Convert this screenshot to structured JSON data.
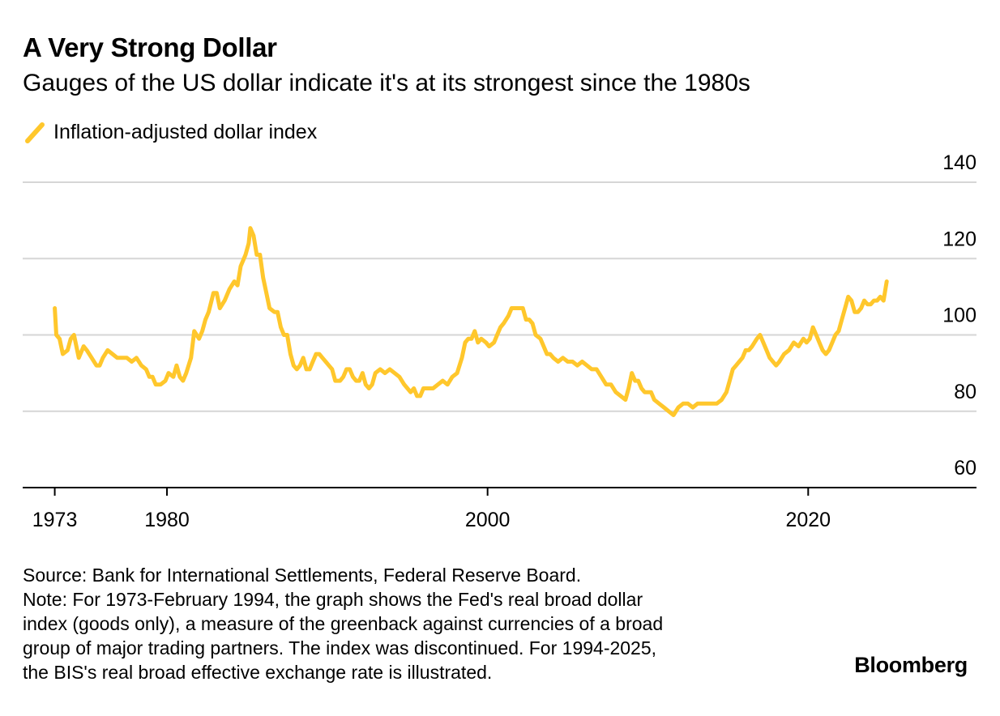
{
  "header": {
    "title": "A Very Strong Dollar",
    "subtitle": "Gauges of the US dollar indicate it's at its strongest since the 1980s"
  },
  "chart_data": {
    "type": "line",
    "title": "A Very Strong Dollar",
    "subtitle": "Gauges of the US dollar indicate it's at its strongest since the 1980s",
    "xlabel": "",
    "ylabel": "",
    "ylim": [
      60,
      140
    ],
    "yticks": [
      140,
      120,
      100,
      80,
      60
    ],
    "xlim": [
      1971,
      2030.5
    ],
    "xticks": [
      1973,
      1980,
      2000,
      2020
    ],
    "y_axis_position": "right",
    "grid": "horizontal",
    "legend_position": "top-left",
    "color": "#FFC72C",
    "series": [
      {
        "name": "Inflation-adjusted dollar index",
        "points": [
          [
            1973.0,
            107
          ],
          [
            1973.1,
            100
          ],
          [
            1973.3,
            99
          ],
          [
            1973.5,
            95
          ],
          [
            1973.8,
            96
          ],
          [
            1974.0,
            99
          ],
          [
            1974.2,
            100
          ],
          [
            1974.5,
            94
          ],
          [
            1974.8,
            97
          ],
          [
            1975.0,
            96
          ],
          [
            1975.3,
            94
          ],
          [
            1975.6,
            92
          ],
          [
            1975.8,
            92
          ],
          [
            1976.0,
            94
          ],
          [
            1976.3,
            96
          ],
          [
            1976.6,
            95
          ],
          [
            1976.9,
            94
          ],
          [
            1977.2,
            94
          ],
          [
            1977.5,
            94
          ],
          [
            1977.8,
            93
          ],
          [
            1978.1,
            94
          ],
          [
            1978.4,
            92
          ],
          [
            1978.7,
            91
          ],
          [
            1978.9,
            89
          ],
          [
            1979.1,
            89
          ],
          [
            1979.3,
            87
          ],
          [
            1979.6,
            87
          ],
          [
            1979.9,
            88
          ],
          [
            1980.1,
            90
          ],
          [
            1980.4,
            89
          ],
          [
            1980.6,
            92
          ],
          [
            1980.8,
            89
          ],
          [
            1981.0,
            88
          ],
          [
            1981.2,
            90
          ],
          [
            1981.5,
            94
          ],
          [
            1981.7,
            101
          ],
          [
            1982.0,
            99
          ],
          [
            1982.2,
            101
          ],
          [
            1982.4,
            104
          ],
          [
            1982.6,
            106
          ],
          [
            1982.9,
            111
          ],
          [
            1983.1,
            111
          ],
          [
            1983.3,
            107
          ],
          [
            1983.6,
            109
          ],
          [
            1983.9,
            112
          ],
          [
            1984.2,
            114
          ],
          [
            1984.4,
            113
          ],
          [
            1984.6,
            118
          ],
          [
            1984.9,
            121
          ],
          [
            1985.1,
            124
          ],
          [
            1985.2,
            128
          ],
          [
            1985.4,
            126
          ],
          [
            1985.6,
            121
          ],
          [
            1985.8,
            121
          ],
          [
            1986.0,
            115
          ],
          [
            1986.2,
            111
          ],
          [
            1986.4,
            107
          ],
          [
            1986.7,
            106
          ],
          [
            1986.9,
            106
          ],
          [
            1987.1,
            102
          ],
          [
            1987.3,
            100
          ],
          [
            1987.5,
            100
          ],
          [
            1987.7,
            95
          ],
          [
            1987.9,
            92
          ],
          [
            1988.1,
            91
          ],
          [
            1988.3,
            92
          ],
          [
            1988.5,
            94
          ],
          [
            1988.7,
            91
          ],
          [
            1988.9,
            91
          ],
          [
            1989.1,
            93
          ],
          [
            1989.3,
            95
          ],
          [
            1989.5,
            95
          ],
          [
            1989.7,
            94
          ],
          [
            1989.9,
            93
          ],
          [
            1990.1,
            92
          ],
          [
            1990.3,
            91
          ],
          [
            1990.5,
            88
          ],
          [
            1990.8,
            88
          ],
          [
            1991.0,
            89
          ],
          [
            1991.2,
            91
          ],
          [
            1991.4,
            91
          ],
          [
            1991.6,
            89
          ],
          [
            1991.8,
            88
          ],
          [
            1992.0,
            88
          ],
          [
            1992.2,
            90
          ],
          [
            1992.4,
            87
          ],
          [
            1992.6,
            86
          ],
          [
            1992.8,
            87
          ],
          [
            1993.0,
            90
          ],
          [
            1993.3,
            91
          ],
          [
            1993.6,
            90
          ],
          [
            1993.9,
            91
          ],
          [
            1994.2,
            90
          ],
          [
            1994.5,
            89
          ],
          [
            1994.8,
            87
          ],
          [
            1995.0,
            86
          ],
          [
            1995.2,
            85
          ],
          [
            1995.4,
            86
          ],
          [
            1995.6,
            84
          ],
          [
            1995.8,
            84
          ],
          [
            1996.0,
            86
          ],
          [
            1996.3,
            86
          ],
          [
            1996.6,
            86
          ],
          [
            1996.9,
            87
          ],
          [
            1997.2,
            88
          ],
          [
            1997.5,
            87
          ],
          [
            1997.8,
            89
          ],
          [
            1998.1,
            90
          ],
          [
            1998.4,
            94
          ],
          [
            1998.6,
            98
          ],
          [
            1998.8,
            99
          ],
          [
            1999.0,
            99
          ],
          [
            1999.2,
            101
          ],
          [
            1999.4,
            98
          ],
          [
            1999.6,
            99
          ],
          [
            1999.9,
            98
          ],
          [
            2000.1,
            97
          ],
          [
            2000.4,
            98
          ],
          [
            2000.6,
            100
          ],
          [
            2000.8,
            102
          ],
          [
            2001.0,
            103
          ],
          [
            2001.3,
            105
          ],
          [
            2001.5,
            107
          ],
          [
            2001.8,
            107
          ],
          [
            2002.0,
            107
          ],
          [
            2002.2,
            107
          ],
          [
            2002.4,
            104
          ],
          [
            2002.6,
            104
          ],
          [
            2002.8,
            103
          ],
          [
            2003.0,
            100
          ],
          [
            2003.3,
            99
          ],
          [
            2003.5,
            97
          ],
          [
            2003.7,
            95
          ],
          [
            2003.9,
            95
          ],
          [
            2004.1,
            94
          ],
          [
            2004.4,
            93
          ],
          [
            2004.7,
            94
          ],
          [
            2005.0,
            93
          ],
          [
            2005.3,
            93
          ],
          [
            2005.6,
            92
          ],
          [
            2005.9,
            93
          ],
          [
            2006.2,
            92
          ],
          [
            2006.5,
            91
          ],
          [
            2006.8,
            91
          ],
          [
            2007.1,
            89
          ],
          [
            2007.4,
            87
          ],
          [
            2007.7,
            87
          ],
          [
            2008.0,
            85
          ],
          [
            2008.3,
            84
          ],
          [
            2008.6,
            83
          ],
          [
            2008.8,
            86
          ],
          [
            2009.0,
            90
          ],
          [
            2009.2,
            88
          ],
          [
            2009.4,
            88
          ],
          [
            2009.6,
            86
          ],
          [
            2009.8,
            85
          ],
          [
            2010.0,
            85
          ],
          [
            2010.2,
            85
          ],
          [
            2010.4,
            83
          ],
          [
            2010.7,
            82
          ],
          [
            2011.0,
            81
          ],
          [
            2011.3,
            80
          ],
          [
            2011.6,
            79
          ],
          [
            2011.9,
            81
          ],
          [
            2012.2,
            82
          ],
          [
            2012.5,
            82
          ],
          [
            2012.8,
            81
          ],
          [
            2013.1,
            82
          ],
          [
            2013.4,
            82
          ],
          [
            2013.7,
            82
          ],
          [
            2014.0,
            82
          ],
          [
            2014.3,
            82
          ],
          [
            2014.6,
            83
          ],
          [
            2014.9,
            85
          ],
          [
            2015.1,
            88
          ],
          [
            2015.3,
            91
          ],
          [
            2015.5,
            92
          ],
          [
            2015.7,
            93
          ],
          [
            2015.9,
            94
          ],
          [
            2016.1,
            96
          ],
          [
            2016.3,
            96
          ],
          [
            2016.5,
            97
          ],
          [
            2016.8,
            99
          ],
          [
            2017.0,
            100
          ],
          [
            2017.2,
            98
          ],
          [
            2017.4,
            96
          ],
          [
            2017.6,
            94
          ],
          [
            2017.8,
            93
          ],
          [
            2018.0,
            92
          ],
          [
            2018.2,
            93
          ],
          [
            2018.5,
            95
          ],
          [
            2018.8,
            96
          ],
          [
            2019.1,
            98
          ],
          [
            2019.4,
            97
          ],
          [
            2019.7,
            99
          ],
          [
            2019.9,
            98
          ],
          [
            2020.1,
            99
          ],
          [
            2020.3,
            102
          ],
          [
            2020.5,
            100
          ],
          [
            2020.7,
            98
          ],
          [
            2020.9,
            96
          ],
          [
            2021.1,
            95
          ],
          [
            2021.3,
            96
          ],
          [
            2021.5,
            98
          ],
          [
            2021.7,
            100
          ],
          [
            2021.9,
            101
          ],
          [
            2022.1,
            104
          ],
          [
            2022.3,
            107
          ],
          [
            2022.5,
            110
          ],
          [
            2022.7,
            109
          ],
          [
            2022.9,
            106
          ],
          [
            2023.1,
            106
          ],
          [
            2023.3,
            107
          ],
          [
            2023.5,
            109
          ],
          [
            2023.7,
            108
          ],
          [
            2023.9,
            108
          ],
          [
            2024.1,
            109
          ],
          [
            2024.3,
            109
          ],
          [
            2024.5,
            110
          ],
          [
            2024.7,
            109
          ],
          [
            2024.9,
            114
          ]
        ]
      }
    ]
  },
  "footer": {
    "source": "Source: Bank for International Settlements, Federal Reserve Board.",
    "note_lines": [
      "Note: For 1973-February 1994, the graph shows the Fed's real broad dollar",
      "index (goods only), a measure of the greenback against currencies of a broad",
      "group of major trading partners. The index was discontinued. For 1994-2025,",
      "the BIS's real broad effective exchange rate is illustrated."
    ],
    "brand": "Bloomberg"
  }
}
